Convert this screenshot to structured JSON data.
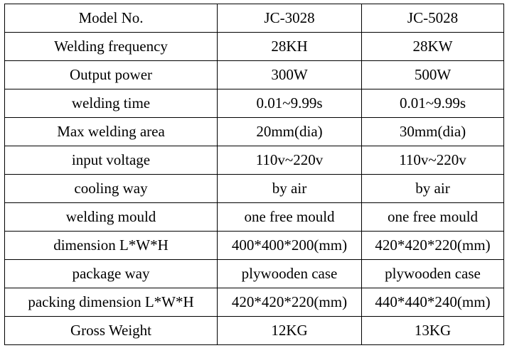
{
  "table": {
    "rows": [
      [
        "Model No.",
        "JC-3028",
        "JC-5028"
      ],
      [
        "Welding frequency",
        "28KH",
        "28KW"
      ],
      [
        "Output power",
        "300W",
        "500W"
      ],
      [
        "welding time",
        "0.01~9.99s",
        "0.01~9.99s"
      ],
      [
        "Max welding area",
        "20mm(dia)",
        "30mm(dia)"
      ],
      [
        "input voltage",
        "110v~220v",
        "110v~220v"
      ],
      [
        "cooling way",
        "by air",
        "by air"
      ],
      [
        "welding mould",
        "one free mould",
        "one free mould"
      ],
      [
        "dimension L*W*H",
        "400*400*200(mm)",
        "420*420*220(mm)"
      ],
      [
        "package way",
        "plywooden case",
        "plywooden case"
      ],
      [
        "packing dimension L*W*H",
        "420*420*220(mm)",
        "440*440*240(mm)"
      ],
      [
        "Gross Weight",
        "12KG",
        "13KG"
      ]
    ]
  }
}
